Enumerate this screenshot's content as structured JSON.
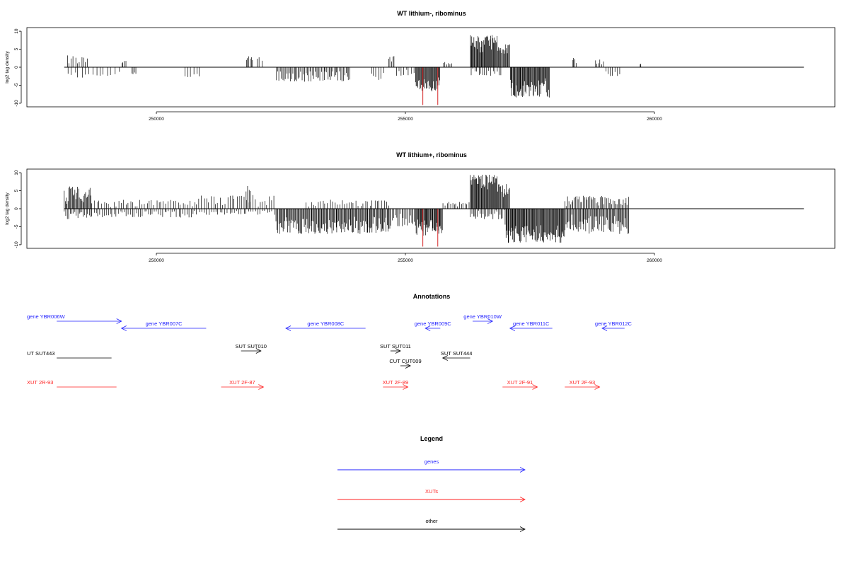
{
  "chart_data": [
    {
      "type": "bar",
      "title": "WT lithium-, ribominus",
      "ylabel": "log2 tag density",
      "xlim": [
        248000,
        263000
      ],
      "ylim": [
        -11,
        11
      ],
      "xticks": [
        "250000",
        "255000",
        "260000"
      ],
      "yticks": [
        "10",
        "5",
        "0",
        "-5",
        "-10"
      ],
      "baseline_extent": [
        248150,
        263000
      ],
      "highlight_color": "#d62728",
      "segments": [
        {
          "start": 248200,
          "end": 248650,
          "sign": 1,
          "lo": 0.6,
          "hi": 3.3,
          "density": 0.35
        },
        {
          "start": 248200,
          "end": 248700,
          "sign": -1,
          "lo": 0.5,
          "hi": 3.3,
          "density": 0.2
        },
        {
          "start": 248700,
          "end": 249300,
          "sign": -1,
          "lo": 0.6,
          "hi": 2.5,
          "density": 0.18
        },
        {
          "start": 249300,
          "end": 249400,
          "sign": 1,
          "lo": 1.0,
          "hi": 2.1,
          "density": 0.5
        },
        {
          "start": 249500,
          "end": 249600,
          "sign": -1,
          "lo": 1.0,
          "hi": 2.4,
          "density": 0.5
        },
        {
          "start": 250550,
          "end": 250900,
          "sign": -1,
          "lo": 1.2,
          "hi": 2.8,
          "density": 0.25
        },
        {
          "start": 251800,
          "end": 251950,
          "sign": 1,
          "lo": 1.5,
          "hi": 3.8,
          "density": 0.6
        },
        {
          "start": 252000,
          "end": 252150,
          "sign": 1,
          "lo": 1.0,
          "hi": 3.3,
          "density": 0.3
        },
        {
          "start": 252400,
          "end": 253900,
          "sign": -1,
          "lo": 0.8,
          "hi": 4.0,
          "density": 0.55
        },
        {
          "start": 254300,
          "end": 254600,
          "sign": -1,
          "lo": 1.0,
          "hi": 3.6,
          "density": 0.3
        },
        {
          "start": 254650,
          "end": 254800,
          "sign": 1,
          "lo": 0.8,
          "hi": 3.2,
          "density": 0.5
        },
        {
          "start": 254800,
          "end": 255200,
          "sign": -1,
          "lo": 0.5,
          "hi": 2.5,
          "density": 0.3
        },
        {
          "start": 255200,
          "end": 255700,
          "sign": -1,
          "lo": 2.5,
          "hi": 6.8,
          "density": 1.0
        },
        {
          "start": 255750,
          "end": 255950,
          "sign": 1,
          "lo": 0.4,
          "hi": 1.5,
          "density": 0.4
        },
        {
          "start": 256300,
          "end": 256850,
          "sign": 1,
          "lo": 4.0,
          "hi": 9.0,
          "density": 1.0
        },
        {
          "start": 256850,
          "end": 257100,
          "sign": 1,
          "lo": 3.0,
          "hi": 6.5,
          "density": 0.9
        },
        {
          "start": 256300,
          "end": 256950,
          "sign": -1,
          "lo": 0.3,
          "hi": 2.8,
          "density": 0.35
        },
        {
          "start": 257100,
          "end": 257900,
          "sign": -1,
          "lo": 3.0,
          "hi": 8.5,
          "density": 1.0
        },
        {
          "start": 258350,
          "end": 258450,
          "sign": 1,
          "lo": 1.0,
          "hi": 2.9,
          "density": 0.5
        },
        {
          "start": 258800,
          "end": 259000,
          "sign": 1,
          "lo": 0.6,
          "hi": 2.2,
          "density": 0.4
        },
        {
          "start": 259000,
          "end": 259350,
          "sign": -1,
          "lo": 0.8,
          "hi": 2.6,
          "density": 0.3
        },
        {
          "start": 259700,
          "end": 259750,
          "sign": 1,
          "lo": 0.5,
          "hi": 1.0,
          "density": 0.5
        }
      ],
      "highlights": [
        255350,
        255650
      ]
    },
    {
      "type": "bar",
      "title": "WT lithium+, ribominus",
      "ylabel": "log2 tag density",
      "xlim": [
        248000,
        263000
      ],
      "ylim": [
        -11,
        11
      ],
      "xticks": [
        "250000",
        "255000",
        "260000"
      ],
      "yticks": [
        "10",
        "5",
        "0",
        "-5",
        "-10"
      ],
      "baseline_extent": [
        248150,
        263000
      ],
      "highlight_color": "#d62728",
      "segments": [
        {
          "start": 248150,
          "end": 248700,
          "sign": 1,
          "lo": 1.0,
          "hi": 6.2,
          "density": 0.8
        },
        {
          "start": 248150,
          "end": 248700,
          "sign": -1,
          "lo": 0.5,
          "hi": 3.0,
          "density": 0.5
        },
        {
          "start": 248700,
          "end": 250800,
          "sign": 1,
          "lo": 0.4,
          "hi": 2.5,
          "density": 0.3
        },
        {
          "start": 248700,
          "end": 250800,
          "sign": -1,
          "lo": 0.4,
          "hi": 2.5,
          "density": 0.35
        },
        {
          "start": 250800,
          "end": 252400,
          "sign": 1,
          "lo": 0.5,
          "hi": 3.8,
          "density": 0.3
        },
        {
          "start": 251800,
          "end": 251900,
          "sign": 1,
          "lo": 2.5,
          "hi": 6.4,
          "density": 0.5
        },
        {
          "start": 250800,
          "end": 252400,
          "sign": -1,
          "lo": 0.3,
          "hi": 1.8,
          "density": 0.3
        },
        {
          "start": 252400,
          "end": 254700,
          "sign": -1,
          "lo": 2.0,
          "hi": 7.0,
          "density": 0.8
        },
        {
          "start": 253000,
          "end": 254700,
          "sign": 1,
          "lo": 0.3,
          "hi": 2.5,
          "density": 0.3
        },
        {
          "start": 254700,
          "end": 255200,
          "sign": -1,
          "lo": 1.0,
          "hi": 5.0,
          "density": 0.5
        },
        {
          "start": 255200,
          "end": 255750,
          "sign": -1,
          "lo": 3.0,
          "hi": 7.5,
          "density": 1.0
        },
        {
          "start": 255750,
          "end": 256300,
          "sign": 1,
          "lo": 0.4,
          "hi": 2.0,
          "density": 0.4
        },
        {
          "start": 256300,
          "end": 256850,
          "sign": 1,
          "lo": 5.0,
          "hi": 9.5,
          "density": 1.0
        },
        {
          "start": 256850,
          "end": 257100,
          "sign": 1,
          "lo": 3.0,
          "hi": 7.0,
          "density": 0.9
        },
        {
          "start": 256300,
          "end": 257000,
          "sign": -1,
          "lo": 0.3,
          "hi": 3.0,
          "density": 0.5
        },
        {
          "start": 257000,
          "end": 258200,
          "sign": -1,
          "lo": 4.0,
          "hi": 9.5,
          "density": 1.0
        },
        {
          "start": 258200,
          "end": 259500,
          "sign": 1,
          "lo": 0.5,
          "hi": 3.6,
          "density": 0.55
        },
        {
          "start": 258200,
          "end": 259500,
          "sign": -1,
          "lo": 1.5,
          "hi": 7.0,
          "density": 0.75
        }
      ],
      "highlights": [
        255350,
        255650
      ]
    }
  ],
  "annotations": {
    "title": "Annotations",
    "xlim": [
      248000,
      263000
    ],
    "items": [
      {
        "label": "gene YBR006W",
        "color": "#1f1fff",
        "start": 248000,
        "end": 249300,
        "dir": "right",
        "row": 0
      },
      {
        "label": "gene YBR007C",
        "color": "#1f1fff",
        "start": 249300,
        "end": 251000,
        "dir": "left",
        "row": 1
      },
      {
        "label": "gene YBR008C",
        "color": "#1f1fff",
        "start": 252600,
        "end": 254200,
        "dir": "left",
        "row": 1
      },
      {
        "label": "gene YBR009C",
        "color": "#1f1fff",
        "start": 255400,
        "end": 255700,
        "dir": "left",
        "row": 1
      },
      {
        "label": "gene YBR010W",
        "color": "#1f1fff",
        "start": 256350,
        "end": 256750,
        "dir": "right",
        "row": 0
      },
      {
        "label": "gene YBR011C",
        "color": "#1f1fff",
        "start": 257100,
        "end": 257950,
        "dir": "left",
        "row": 1
      },
      {
        "label": "gene YBR012C",
        "color": "#1f1fff",
        "start": 258950,
        "end": 259400,
        "dir": "left",
        "row": 1
      },
      {
        "label": "UT SUT443",
        "color": "#000000",
        "start": 248000,
        "end": 249100,
        "dir": "none",
        "row": 3
      },
      {
        "label": "SUT SUT010",
        "color": "#000000",
        "start": 251700,
        "end": 252100,
        "dir": "right",
        "row": 2
      },
      {
        "label": "SUT SUT011",
        "color": "#000000",
        "start": 254700,
        "end": 254900,
        "dir": "right",
        "row": 2
      },
      {
        "label": "SUT SUT444",
        "color": "#000000",
        "start": 255750,
        "end": 256300,
        "dir": "left",
        "row": 3
      },
      {
        "label": "CUT CUT009",
        "color": "#000000",
        "start": 254900,
        "end": 255100,
        "dir": "right",
        "row": 4
      },
      {
        "label": "XUT 2R-93",
        "color": "#ff1f1f",
        "start": 248000,
        "end": 249200,
        "dir": "none",
        "row": 5
      },
      {
        "label": "XUT 2F-87",
        "color": "#ff1f1f",
        "start": 251300,
        "end": 252150,
        "dir": "right",
        "row": 5
      },
      {
        "label": "XUT 2F-89",
        "color": "#ff1f1f",
        "start": 254550,
        "end": 255050,
        "dir": "right",
        "row": 5
      },
      {
        "label": "XUT 2F-91",
        "color": "#ff1f1f",
        "start": 256950,
        "end": 257650,
        "dir": "right",
        "row": 5
      },
      {
        "label": "XUT 2F-93",
        "color": "#ff1f1f",
        "start": 258200,
        "end": 258900,
        "dir": "right",
        "row": 5
      }
    ]
  },
  "legend": {
    "title": "Legend",
    "items": [
      {
        "label": "genes",
        "color": "#1f1fff"
      },
      {
        "label": "XUTs",
        "color": "#ff1f1f"
      },
      {
        "label": "other",
        "color": "#000000"
      }
    ]
  }
}
